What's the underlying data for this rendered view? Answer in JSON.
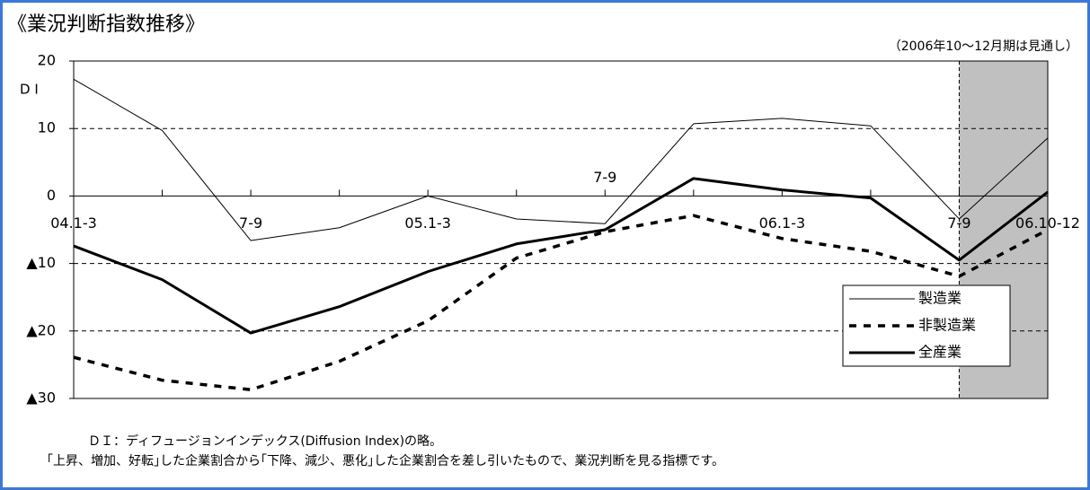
{
  "chart_data": {
    "type": "line",
    "title": "《業況判断指数推移》",
    "note": "（2006年10～12月期は見通し）",
    "y_label": "D I",
    "categories": [
      "04.1-3",
      null,
      "7-9",
      null,
      "05.1-3",
      null,
      "7-9",
      null,
      "06.1-3",
      null,
      "7-9",
      "06.10-12"
    ],
    "series": [
      {
        "name": "製造業",
        "color": "#000000",
        "line_width": 1,
        "line_style": "solid",
        "values": [
          17.3,
          9.7,
          -6.6,
          -4.7,
          0,
          -3.4,
          -4.1,
          10.7,
          11.5,
          10.4,
          -3.4,
          8.6
        ]
      },
      {
        "name": "非製造業",
        "color": "#000000",
        "line_width": 3.5,
        "line_style": "dashed",
        "values": [
          -23.9,
          -27.3,
          -28.7,
          -24.5,
          -18.5,
          -9.2,
          -5.3,
          -2.9,
          -6.3,
          -8.2,
          -11.9,
          -5.0
        ]
      },
      {
        "name": "全産業",
        "color": "#000000",
        "line_width": 3,
        "line_style": "solid",
        "values": [
          -7.4,
          -12.4,
          -20.3,
          -16.4,
          -11.2,
          -7.1,
          -5.0,
          2.6,
          0.9,
          -0.3,
          -9.5,
          0.6
        ]
      }
    ],
    "ylim": [
      -30,
      20
    ],
    "yticks": [
      {
        "value": -30,
        "label": "▲30"
      },
      {
        "value": -20,
        "label": "▲20"
      },
      {
        "value": -10,
        "label": "▲10"
      },
      0,
      10,
      20
    ],
    "grid": true,
    "shade": {
      "from": 10,
      "to": 11,
      "color": "#c0c0c0"
    },
    "legend": "lower right",
    "footnote_term": "ＤＩ：",
    "footnote_term_color": "#3c78d8",
    "footnote_line1": "ディフュージョンインデックス(Diffusion Index)の略。",
    "footnote_line2": "｢上昇、増加、好転｣した企業割合から｢下降、減少、悪化｣した企業割合を差し引いたもので、業況判断を見る指標です。"
  }
}
